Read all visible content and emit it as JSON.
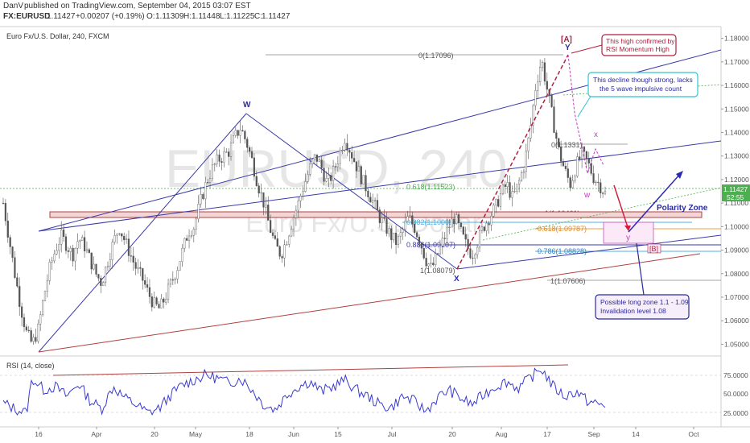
{
  "header": {
    "author": "DanV",
    "published": "published on TradingView.com, September 04, 2015 03:07 EST",
    "symbol": "FX:EURUSD",
    "price": "1.11427",
    "change": "+0.00207 (+0.19%)",
    "ohlc_o_label": "O:",
    "ohlc_o": "1.11309",
    "ohlc_h_label": "H:",
    "ohlc_h": "1.11448",
    "ohlc_l_label": "L:",
    "ohlc_l": "1.11225",
    "ohlc_c_label": "C:",
    "ohlc_c": "1.11427",
    "chart_title": "Euro Fx/U.S. Dollar, 240, FXCM",
    "watermark_main": "EURUSD, 240",
    "watermark_sub": "Euro Fx/U.S. Dollar"
  },
  "price_axis": {
    "ticks": [
      "1.18000",
      "1.17000",
      "1.16000",
      "1.15000",
      "1.14000",
      "1.13000",
      "1.12000",
      "1.11000",
      "1.10000",
      "1.09000",
      "1.08000",
      "1.07000",
      "1.06000",
      "1.05000"
    ],
    "current_price": "1.11427",
    "countdown": "52:55"
  },
  "time_axis": [
    "16",
    "Apr",
    "20",
    "May",
    "18",
    "Jun",
    "15",
    "Jul",
    "20",
    "Aug",
    "17",
    "Sep",
    "14",
    "Oct"
  ],
  "rsi": {
    "label": "RSI (14, close)",
    "ticks": [
      "75.0000",
      "50.0000",
      "25.0000"
    ],
    "current": "38.0000"
  },
  "annotations": {
    "wave_W": "W",
    "wave_X": "X",
    "wave_Y": "Y",
    "wave_A": "[A]",
    "wave_B": "[B]",
    "wave_x_small": "x",
    "wave_w_small": "w",
    "wave_y_small": "y",
    "polarity_zone": "Polarity Zone",
    "callout_high_1": "This high confirmed by",
    "callout_high_2": "RSI Momentum High",
    "callout_decline_1": "This decline though strong, lacks",
    "callout_decline_2": "the 5 wave impulsive count",
    "callout_long_1": "Possible long zone 1.1 - 1.09",
    "callout_long_2": "Invalidation level 1.08"
  },
  "fib_levels": {
    "f0": "0(1.17096)",
    "f0b": "0(1.1331)",
    "f618a": "0.618(1.11523)",
    "f1": "1(1.10461)",
    "f382": "0.382(1.10008)",
    "f618b": "0.618(1.09787)",
    "f886": "0.886(1.09107)",
    "f786": "0.786(1.08828)",
    "f1b": "1(1.08079)",
    "f1c": "1(1.07606)"
  },
  "colors": {
    "candle_up": "#555555",
    "channel_blue": "#3a3aa8",
    "channel_red": "#b0403f",
    "fib_green": "#4caf50",
    "rsi_line": "#3a3ad0",
    "callout_red": "#b0203f",
    "callout_cyan": "#2ec4d0",
    "callout_blue": "#2a2aa0",
    "price_tag": "#4caf50"
  },
  "chart_data": {
    "type": "candlestick",
    "symbol": "FX:EURUSD",
    "timeframe": "240",
    "ylim": [
      1.045,
      1.185
    ],
    "x_labels": [
      "16",
      "Apr",
      "20",
      "May",
      "18",
      "Jun",
      "15",
      "Jul",
      "20",
      "Aug",
      "17",
      "Sep",
      "14",
      "Oct"
    ],
    "price_path": [
      [
        0,
        1.11
      ],
      [
        4,
        1.095
      ],
      [
        8,
        1.08
      ],
      [
        12,
        1.066
      ],
      [
        16,
        1.055
      ],
      [
        20,
        1.05
      ],
      [
        24,
        1.056
      ],
      [
        28,
        1.07
      ],
      [
        32,
        1.082
      ],
      [
        36,
        1.09
      ],
      [
        40,
        1.096
      ],
      [
        44,
        1.092
      ],
      [
        48,
        1.088
      ],
      [
        52,
        1.095
      ],
      [
        56,
        1.092
      ],
      [
        60,
        1.086
      ],
      [
        64,
        1.08
      ],
      [
        68,
        1.076
      ],
      [
        72,
        1.085
      ],
      [
        76,
        1.093
      ],
      [
        80,
        1.1
      ],
      [
        84,
        1.094
      ],
      [
        88,
        1.088
      ],
      [
        92,
        1.082
      ],
      [
        96,
        1.078
      ],
      [
        100,
        1.072
      ],
      [
        104,
        1.067
      ],
      [
        108,
        1.065
      ],
      [
        112,
        1.07
      ],
      [
        116,
        1.076
      ],
      [
        120,
        1.082
      ],
      [
        124,
        1.09
      ],
      [
        128,
        1.098
      ],
      [
        132,
        1.1
      ],
      [
        136,
        1.11
      ],
      [
        140,
        1.118
      ],
      [
        144,
        1.124
      ],
      [
        148,
        1.128
      ],
      [
        152,
        1.13
      ],
      [
        156,
        1.132
      ],
      [
        160,
        1.138
      ],
      [
        164,
        1.142
      ],
      [
        168,
        1.136
      ],
      [
        172,
        1.128
      ],
      [
        176,
        1.118
      ],
      [
        180,
        1.11
      ],
      [
        184,
        1.1
      ],
      [
        188,
        1.092
      ],
      [
        192,
        1.088
      ],
      [
        196,
        1.095
      ],
      [
        200,
        1.103
      ],
      [
        204,
        1.11
      ],
      [
        208,
        1.118
      ],
      [
        212,
        1.125
      ],
      [
        216,
        1.13
      ],
      [
        220,
        1.125
      ],
      [
        224,
        1.118
      ],
      [
        228,
        1.123
      ],
      [
        232,
        1.13
      ],
      [
        236,
        1.138
      ],
      [
        240,
        1.132
      ],
      [
        244,
        1.126
      ],
      [
        248,
        1.12
      ],
      [
        252,
        1.115
      ],
      [
        256,
        1.11
      ],
      [
        260,
        1.104
      ],
      [
        264,
        1.1
      ],
      [
        268,
        1.096
      ],
      [
        272,
        1.093
      ],
      [
        276,
        1.098
      ],
      [
        280,
        1.104
      ],
      [
        284,
        1.1
      ],
      [
        288,
        1.094
      ],
      [
        292,
        1.086
      ],
      [
        296,
        1.082
      ],
      [
        300,
        1.088
      ],
      [
        304,
        1.094
      ],
      [
        308,
        1.1
      ],
      [
        312,
        1.104
      ],
      [
        316,
        1.098
      ],
      [
        320,
        1.092
      ],
      [
        324,
        1.088
      ],
      [
        328,
        1.094
      ],
      [
        332,
        1.1
      ],
      [
        336,
        1.104
      ],
      [
        340,
        1.108
      ],
      [
        344,
        1.114
      ],
      [
        348,
        1.118
      ],
      [
        352,
        1.112
      ],
      [
        356,
        1.118
      ],
      [
        360,
        1.126
      ],
      [
        364,
        1.14
      ],
      [
        368,
        1.16
      ],
      [
        372,
        1.171
      ],
      [
        376,
        1.158
      ],
      [
        380,
        1.145
      ],
      [
        384,
        1.132
      ],
      [
        388,
        1.124
      ],
      [
        392,
        1.118
      ],
      [
        396,
        1.126
      ],
      [
        400,
        1.131
      ],
      [
        404,
        1.127
      ],
      [
        408,
        1.121
      ],
      [
        412,
        1.118
      ],
      [
        416,
        1.114
      ]
    ],
    "rsi_path": [
      [
        0,
        42
      ],
      [
        8,
        35
      ],
      [
        16,
        30
      ],
      [
        20,
        72
      ],
      [
        28,
        58
      ],
      [
        36,
        62
      ],
      [
        44,
        50
      ],
      [
        52,
        66
      ],
      [
        60,
        45
      ],
      [
        68,
        35
      ],
      [
        76,
        62
      ],
      [
        84,
        48
      ],
      [
        92,
        40
      ],
      [
        100,
        30
      ],
      [
        108,
        36
      ],
      [
        116,
        52
      ],
      [
        124,
        64
      ],
      [
        132,
        70
      ],
      [
        140,
        76
      ],
      [
        148,
        72
      ],
      [
        156,
        66
      ],
      [
        164,
        72
      ],
      [
        172,
        58
      ],
      [
        180,
        40
      ],
      [
        188,
        34
      ],
      [
        196,
        52
      ],
      [
        204,
        62
      ],
      [
        212,
        68
      ],
      [
        220,
        56
      ],
      [
        228,
        62
      ],
      [
        236,
        70
      ],
      [
        244,
        58
      ],
      [
        252,
        50
      ],
      [
        260,
        40
      ],
      [
        268,
        36
      ],
      [
        276,
        50
      ],
      [
        284,
        44
      ],
      [
        292,
        32
      ],
      [
        300,
        48
      ],
      [
        308,
        58
      ],
      [
        316,
        48
      ],
      [
        324,
        40
      ],
      [
        332,
        52
      ],
      [
        340,
        62
      ],
      [
        348,
        68
      ],
      [
        356,
        60
      ],
      [
        364,
        72
      ],
      [
        372,
        84
      ],
      [
        380,
        62
      ],
      [
        388,
        50
      ],
      [
        396,
        56
      ],
      [
        404,
        44
      ],
      [
        412,
        40
      ],
      [
        416,
        38
      ]
    ]
  }
}
